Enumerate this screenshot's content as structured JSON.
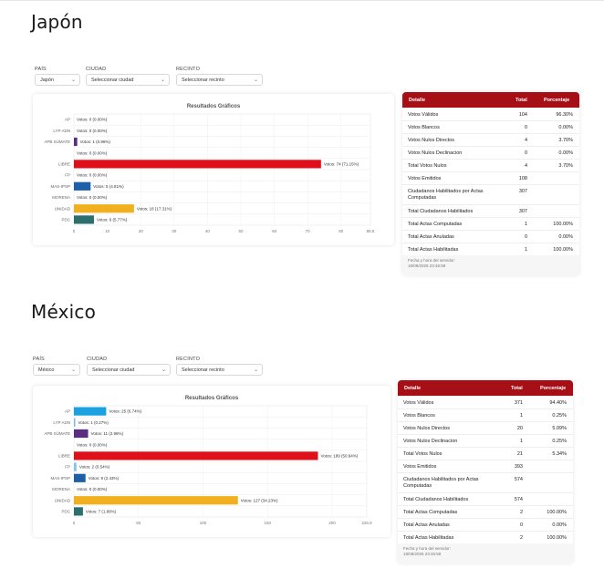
{
  "sections": [
    {
      "title": "Japón",
      "filters": {
        "pais_label": "PAÍS",
        "pais_value": "Japón",
        "ciudad_label": "CIUDAD",
        "ciudad_value": "Seleccionar ciudad",
        "recinto_label": "RECINTO",
        "recinto_value": "Seleccionar recinto"
      },
      "chart_data": {
        "type": "bar",
        "orientation": "horizontal",
        "title": "Resultados Gráficos",
        "categories": [
          "AP",
          "LYP ADN",
          "APB SÚMATE",
          "",
          "LIBRE",
          "FP",
          "MAS-IPSP",
          "MORENA",
          "UNIDAD",
          "PDC"
        ],
        "values": [
          0,
          0,
          1,
          0,
          74,
          0,
          5,
          0,
          18,
          6
        ],
        "labels": [
          "Votos: 0 (0.00%)",
          "Votos: 0 (0.00%)",
          "Votos: 1 (0.96%)",
          "Votos: 0 (0.00%)",
          "Votos: 74 (71.15%)",
          "Votos: 0 (0.00%)",
          "Votos: 5 (4.81%)",
          "Votos: 0 (0.00%)",
          "Votos: 18 (17.31%)",
          "Votos: 6 (5.77%)"
        ],
        "colors": [
          "#1ba1e2",
          "#7fb8e0",
          "#5b2d82",
          "#cccccc",
          "#e0101a",
          "#7fc6f0",
          "#1f5fa8",
          "#8b1a1a",
          "#f2b01e",
          "#2d6e6e"
        ],
        "xticks": [
          "0",
          "10",
          "20",
          "30",
          "40",
          "50",
          "60",
          "70",
          "80",
          "88.8"
        ],
        "xlim": [
          0,
          88.8
        ],
        "grid": true
      },
      "table": {
        "headers": [
          "Detalle",
          "Total",
          "Porcentaje"
        ],
        "rows": [
          [
            "Votos Válidos",
            "104",
            "96.30%"
          ],
          [
            "Votos Blancos",
            "0",
            "0.00%"
          ],
          [
            "Votos Nulos Directos",
            "4",
            "3.70%"
          ],
          [
            "Votos Nulos Declinacion",
            "0",
            "0.00%"
          ],
          [
            "Total Votos Nulos",
            "4",
            "3.70%"
          ],
          [
            "Votos Emitidos",
            "108",
            ""
          ],
          [
            "Ciudadanos Habilitados por Actas Computadas",
            "307",
            ""
          ],
          [
            "Total Ciudadanos Habilitados",
            "307",
            ""
          ],
          [
            "Total Actas Computadas",
            "1",
            "100.00%"
          ],
          [
            "Total Actas Anuladas",
            "0",
            "0.00%"
          ],
          [
            "Total Actas Habilitadas",
            "1",
            "100.00%"
          ]
        ],
        "footnote_label": "Fecha y hora del servidor:",
        "footnote_value": "18/08/2025 23:46:58"
      }
    },
    {
      "title": "México",
      "filters": {
        "pais_label": "PAÍS",
        "pais_value": "México",
        "ciudad_label": "CIUDAD",
        "ciudad_value": "Seleccionar ciudad",
        "recinto_label": "RECINTO",
        "recinto_value": "Seleccionar recinto"
      },
      "chart_data": {
        "type": "bar",
        "orientation": "horizontal",
        "title": "Resultados Gráficos",
        "categories": [
          "AP",
          "LYP ADN",
          "APB SÚMATE",
          "",
          "LIBRE",
          "FP",
          "MAS-IPSP",
          "MORENA",
          "UNIDAD",
          "PDC"
        ],
        "values": [
          25,
          1,
          11,
          0,
          189,
          2,
          9,
          0,
          127,
          7
        ],
        "labels": [
          "Votos: 25 (6.74%)",
          "Votos: 1 (0.27%)",
          "Votos: 11 (2.96%)",
          "Votos: 0 (0.00%)",
          "Votos: 189 (50.94%)",
          "Votos: 2 (0.54%)",
          "Votos: 9 (2.43%)",
          "Votos: 0 (0.00%)",
          "Votos: 127 (34.23%)",
          "Votos: 7 (1.89%)"
        ],
        "colors": [
          "#1ba1e2",
          "#7fb8e0",
          "#5b2d82",
          "#cccccc",
          "#e0101a",
          "#7fc6f0",
          "#1f5fa8",
          "#8b1a1a",
          "#f2b01e",
          "#2d6e6e"
        ],
        "xticks": [
          "0",
          "50",
          "100",
          "150",
          "200",
          "226.8"
        ],
        "xlim": [
          0,
          226.8
        ],
        "grid": true
      },
      "table": {
        "headers": [
          "Detalle",
          "Total",
          "Porcentaje"
        ],
        "rows": [
          [
            "Votos Válidos",
            "371",
            "94.40%"
          ],
          [
            "Votos Blancos",
            "1",
            "0.25%"
          ],
          [
            "Votos Nulos Directos",
            "20",
            "5.09%"
          ],
          [
            "Votos Nulos Declinacion",
            "1",
            "0.25%"
          ],
          [
            "Total Votos Nulos",
            "21",
            "5.34%"
          ],
          [
            "Votos Emitidos",
            "393",
            ""
          ],
          [
            "Ciudadanos Habilitados por Actas Computadas",
            "574",
            ""
          ],
          [
            "Total Ciudadanos Habilitados",
            "574",
            ""
          ],
          [
            "Total Actas Computadas",
            "2",
            "100.00%"
          ],
          [
            "Total Actas Anuladas",
            "0",
            "0.00%"
          ],
          [
            "Total Actas Habilitadas",
            "2",
            "100.00%"
          ]
        ],
        "footnote_label": "Fecha y hora del servidor:",
        "footnote_value": "18/08/2025 23:46:58"
      }
    }
  ]
}
